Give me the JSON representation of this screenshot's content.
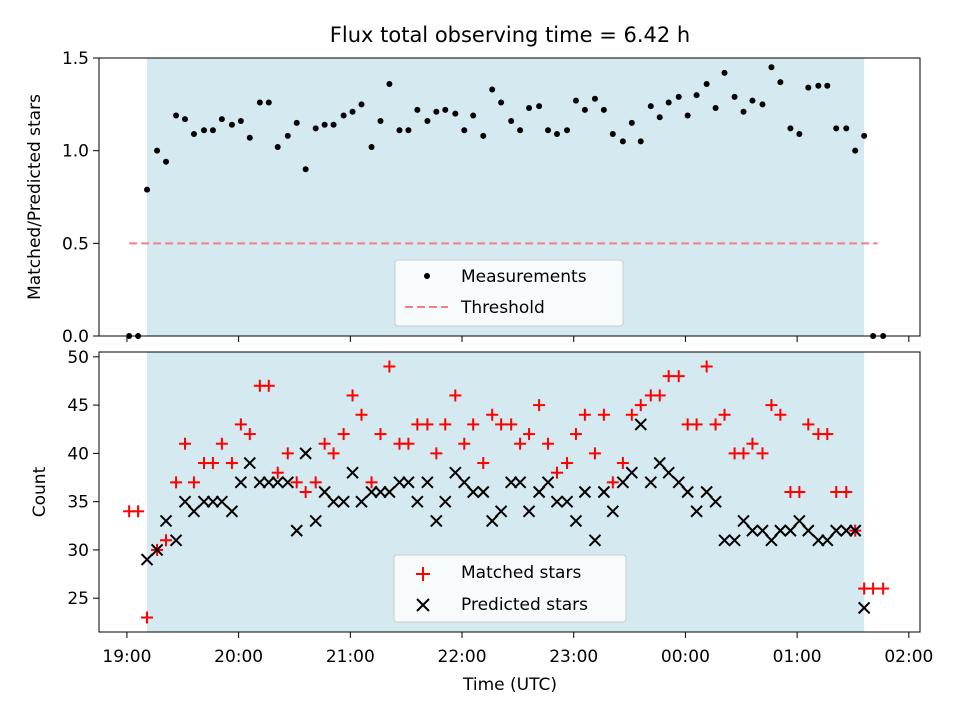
{
  "title": "Flux total observing time = 6.42 h",
  "chart_data": [
    {
      "type": "scatter",
      "ylabel": "Matched/Predicted stars",
      "ylim": [
        0,
        1.5
      ],
      "yticks": [
        "0.0",
        "0.5",
        "1.0",
        "1.5"
      ],
      "xlim": [
        18.75,
        26.1
      ],
      "observing_window": [
        19.18,
        25.6
      ],
      "shade_color": "#d4eaf0",
      "threshold": {
        "value": 0.5,
        "range": [
          19.02,
          25.72
        ],
        "color": "#f08080"
      },
      "legend": {
        "placement": "lower-center",
        "entries": [
          "Measurements",
          "Threshold"
        ]
      },
      "series": [
        {
          "name": "Measurements",
          "marker": "dot",
          "color": "#000000",
          "x": [
            19.02,
            19.1,
            19.18,
            19.27,
            19.35,
            19.44,
            19.52,
            19.6,
            19.69,
            19.77,
            19.85,
            19.94,
            20.02,
            20.1,
            20.19,
            20.27,
            20.35,
            20.44,
            20.52,
            20.6,
            20.69,
            20.77,
            20.85,
            20.94,
            21.02,
            21.1,
            21.19,
            21.27,
            21.35,
            21.44,
            21.52,
            21.6,
            21.69,
            21.77,
            21.85,
            21.94,
            22.02,
            22.1,
            22.19,
            22.27,
            22.35,
            22.44,
            22.52,
            22.6,
            22.69,
            22.77,
            22.85,
            22.94,
            23.02,
            23.1,
            23.19,
            23.27,
            23.35,
            23.44,
            23.52,
            23.6,
            23.69,
            23.77,
            23.85,
            23.94,
            24.02,
            24.1,
            24.19,
            24.27,
            24.35,
            24.44,
            24.52,
            24.6,
            24.69,
            24.77,
            24.85,
            24.94,
            25.02,
            25.1,
            25.19,
            25.27,
            25.35,
            25.44,
            25.52,
            25.6,
            25.68,
            25.77
          ],
          "y": [
            0.0,
            0.0,
            0.79,
            1.0,
            0.94,
            1.19,
            1.17,
            1.09,
            1.11,
            1.11,
            1.17,
            1.14,
            1.16,
            1.07,
            1.26,
            1.26,
            1.02,
            1.08,
            1.15,
            0.9,
            1.12,
            1.14,
            1.14,
            1.19,
            1.21,
            1.25,
            1.02,
            1.16,
            1.36,
            1.11,
            1.11,
            1.22,
            1.16,
            1.21,
            1.22,
            1.2,
            1.11,
            1.19,
            1.08,
            1.33,
            1.26,
            1.16,
            1.11,
            1.23,
            1.24,
            1.11,
            1.09,
            1.11,
            1.27,
            1.22,
            1.28,
            1.22,
            1.09,
            1.05,
            1.15,
            1.05,
            1.24,
            1.18,
            1.26,
            1.29,
            1.19,
            1.3,
            1.36,
            1.23,
            1.42,
            1.29,
            1.21,
            1.27,
            1.25,
            1.45,
            1.37,
            1.12,
            1.09,
            1.34,
            1.35,
            1.35,
            1.12,
            1.12,
            1.0,
            1.08,
            0.0,
            0.0
          ]
        }
      ]
    },
    {
      "type": "scatter",
      "xlabel": "Time (UTC)",
      "ylabel": "Count",
      "ylim": [
        21.5,
        50.5
      ],
      "yticks": [
        "25",
        "30",
        "35",
        "40",
        "45",
        "50"
      ],
      "xlim": [
        18.75,
        26.1
      ],
      "xticks": [
        "19:00",
        "20:00",
        "21:00",
        "22:00",
        "23:00",
        "00:00",
        "01:00",
        "02:00"
      ],
      "observing_window": [
        19.18,
        25.6
      ],
      "shade_color": "#d4eaf0",
      "legend": {
        "placement": "lower-center",
        "entries": [
          "Matched stars",
          "Predicted stars"
        ]
      },
      "x": [
        19.02,
        19.1,
        19.18,
        19.27,
        19.35,
        19.44,
        19.52,
        19.6,
        19.69,
        19.77,
        19.85,
        19.94,
        20.02,
        20.1,
        20.19,
        20.27,
        20.35,
        20.44,
        20.52,
        20.6,
        20.69,
        20.77,
        20.85,
        20.94,
        21.02,
        21.1,
        21.19,
        21.27,
        21.35,
        21.44,
        21.52,
        21.6,
        21.69,
        21.77,
        21.85,
        21.94,
        22.02,
        22.1,
        22.19,
        22.27,
        22.35,
        22.44,
        22.52,
        22.6,
        22.69,
        22.77,
        22.85,
        22.94,
        23.02,
        23.1,
        23.19,
        23.27,
        23.35,
        23.44,
        23.52,
        23.6,
        23.69,
        23.77,
        23.85,
        23.94,
        24.02,
        24.1,
        24.19,
        24.27,
        24.35,
        24.44,
        24.52,
        24.6,
        24.69,
        24.77,
        24.85,
        24.94,
        25.02,
        25.1,
        25.19,
        25.27,
        25.35,
        25.44,
        25.52,
        25.6,
        25.68,
        25.77
      ],
      "series": [
        {
          "name": "Matched stars",
          "marker": "plus",
          "color": "#ff0000",
          "values": [
            34,
            34,
            23,
            30,
            31,
            37,
            41,
            37,
            39,
            39,
            41,
            39,
            43,
            42,
            47,
            47,
            38,
            40,
            37,
            36,
            37,
            41,
            40,
            42,
            46,
            44,
            37,
            42,
            49,
            41,
            41,
            43,
            43,
            40,
            43,
            46,
            41,
            43,
            39,
            44,
            43,
            43,
            41,
            42,
            45,
            41,
            38,
            39,
            42,
            44,
            40,
            44,
            37,
            39,
            44,
            45,
            46,
            46,
            48,
            48,
            43,
            43,
            49,
            43,
            44,
            40,
            40,
            41,
            40,
            45,
            44,
            36,
            36,
            43,
            42,
            42,
            36,
            36,
            32,
            26,
            26,
            26
          ]
        },
        {
          "name": "Predicted stars",
          "marker": "x",
          "color": "#000000",
          "values": [
            null,
            null,
            29,
            30,
            33,
            31,
            35,
            34,
            35,
            35,
            35,
            34,
            37,
            39,
            37,
            37,
            37,
            37,
            32,
            40,
            33,
            36,
            35,
            35,
            38,
            35,
            36,
            36,
            36,
            37,
            37,
            35,
            37,
            33,
            35,
            38,
            37,
            36,
            36,
            33,
            34,
            37,
            37,
            34,
            36,
            37,
            35,
            35,
            33,
            36,
            31,
            36,
            34,
            37,
            38,
            43,
            37,
            39,
            38,
            37,
            36,
            34,
            36,
            35,
            31,
            31,
            33,
            32,
            32,
            31,
            32,
            32,
            33,
            32,
            31,
            31,
            32,
            32,
            32,
            24,
            null,
            null
          ]
        }
      ]
    }
  ]
}
